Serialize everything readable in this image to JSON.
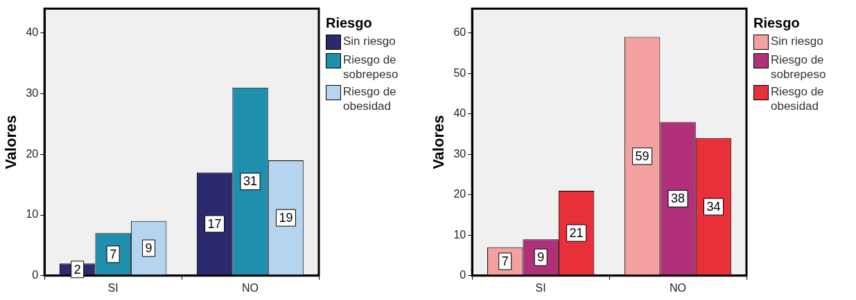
{
  "chart_data": [
    {
      "type": "bar",
      "ylabel": "Valores",
      "legend_title": "Riesgo",
      "categories": [
        "SI",
        "NO"
      ],
      "ylim": [
        0,
        44
      ],
      "yticks": [
        0,
        10,
        20,
        30,
        40
      ],
      "grid": false,
      "legend": "top right",
      "data_labels": true,
      "series": [
        {
          "name": "Sin riesgo",
          "color": "#2b2a6e",
          "values": [
            2,
            17
          ]
        },
        {
          "name": "Riesgo de sobrepeso",
          "color": "#1f8fae",
          "values": [
            7,
            31
          ]
        },
        {
          "name": "Riesgo de obesidad",
          "color": "#b4d4ef",
          "values": [
            9,
            19
          ]
        }
      ]
    },
    {
      "type": "bar",
      "ylabel": "Valores",
      "legend_title": "Riesgo",
      "categories": [
        "SI",
        "NO"
      ],
      "ylim": [
        0,
        66
      ],
      "yticks": [
        0,
        10,
        20,
        30,
        40,
        50,
        60
      ],
      "grid": false,
      "legend": "top right",
      "data_labels": true,
      "series": [
        {
          "name": "Sin riesgo",
          "color": "#f4a0a0",
          "values": [
            7,
            59
          ]
        },
        {
          "name": "Riesgo de sobrepeso",
          "color": "#b0307a",
          "values": [
            9,
            38
          ]
        },
        {
          "name": "Riesgo de obesidad",
          "color": "#e8303a",
          "values": [
            21,
            34
          ]
        }
      ]
    }
  ]
}
